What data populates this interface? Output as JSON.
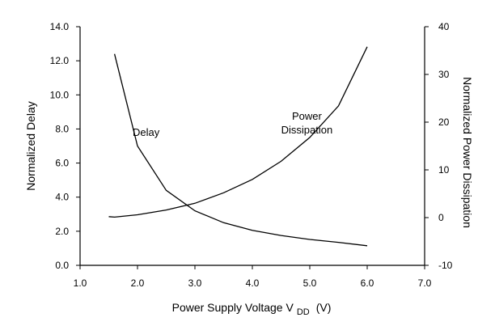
{
  "chart_data": {
    "type": "line",
    "xlabel": "Power Supply Voltage V",
    "xlabel_subscript": "DD",
    "xlabel_unit": "(V)",
    "ylabel_left": "Normalized Delay",
    "ylabel_right": "Normalized Power Dissipation",
    "xlim": [
      1.0,
      7.0
    ],
    "ylim_left": [
      0.0,
      14.0
    ],
    "ylim_right": [
      -10,
      40
    ],
    "x_ticks": [
      "1.0",
      "2.0",
      "3.0",
      "4.0",
      "5.0",
      "6.0",
      "7.0"
    ],
    "y_left_ticks": [
      "0.0",
      "2.0",
      "4.0",
      "6.0",
      "8.0",
      "10.0",
      "12.0",
      "14.0"
    ],
    "y_right_ticks": [
      "-10",
      "0",
      "10",
      "20",
      "30",
      "40"
    ],
    "grid": false,
    "series": [
      {
        "axis": "left",
        "label_lines": [
          "Delay"
        ],
        "label_at": [
          2.15,
          7.6
        ],
        "x": [
          1.6,
          2.0,
          2.5,
          3.0,
          3.5,
          4.0,
          4.5,
          5.0,
          5.5,
          6.0
        ],
        "y": [
          12.4,
          7.0,
          4.4,
          3.2,
          2.5,
          2.05,
          1.75,
          1.52,
          1.35,
          1.15
        ]
      },
      {
        "axis": "right",
        "label_lines": [
          "Power",
          "Dissipation"
        ],
        "label_at": [
          4.95,
          20.5
        ],
        "x": [
          1.5,
          1.6,
          2.0,
          2.5,
          3.0,
          3.5,
          4.0,
          4.5,
          5.0,
          5.5,
          6.0
        ],
        "y": [
          0.2,
          0.1,
          0.6,
          1.6,
          3.0,
          5.2,
          8.0,
          11.8,
          16.8,
          23.4,
          35.8
        ]
      }
    ]
  }
}
